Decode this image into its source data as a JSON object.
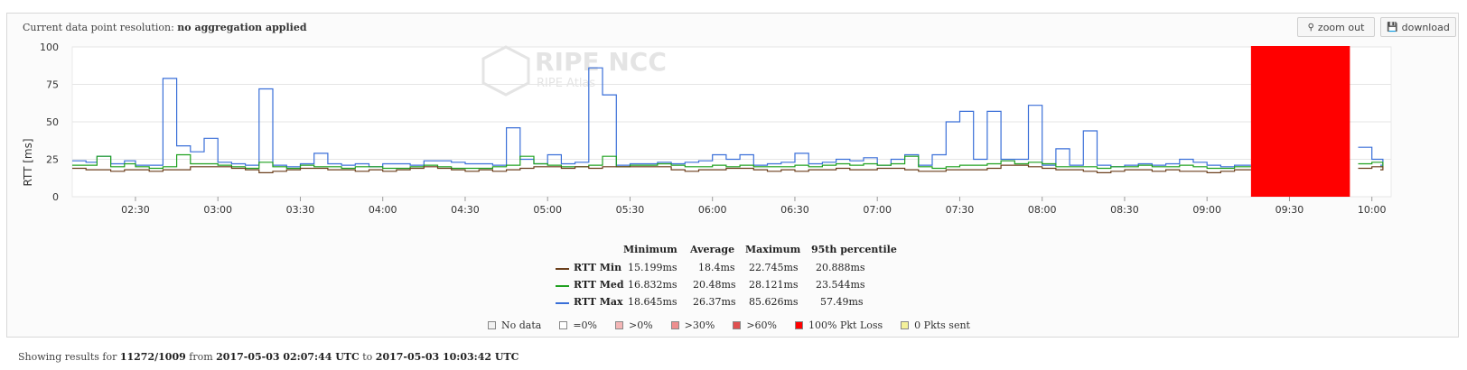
{
  "header": {
    "resolution_label": "Current data point resolution:",
    "resolution_value": "no aggregation applied",
    "zoom_out_label": "zoom out",
    "download_label": "download"
  },
  "watermark": {
    "brand": "RIPE NCC",
    "sub": "RIPE Atlas"
  },
  "colors": {
    "min": "#6b3f1c",
    "med": "#1fa01f",
    "max": "#3a6fd8",
    "loss": "#ff0000",
    "grid": "#e6e6e6"
  },
  "chart_data": {
    "type": "line",
    "ylabel": "RTT [ms]",
    "ylim": [
      0,
      100
    ],
    "yticks": [
      0,
      25,
      50,
      75,
      100
    ],
    "xlim": [
      "02:07",
      "10:07"
    ],
    "xticks": [
      "02:30",
      "03:00",
      "03:30",
      "04:00",
      "04:30",
      "05:00",
      "05:30",
      "06:00",
      "06:30",
      "07:00",
      "07:30",
      "08:00",
      "08:30",
      "09:00",
      "09:30",
      "10:00"
    ],
    "step": true,
    "loss_band": {
      "from": "09:16",
      "to": "09:52",
      "label": "100% Pkt Loss"
    },
    "series": [
      {
        "name": "RTT Min",
        "x": [
          "02:07",
          "02:12",
          "02:16",
          "02:21",
          "02:26",
          "02:30",
          "02:35",
          "02:40",
          "02:45",
          "02:50",
          "02:55",
          "03:00",
          "03:05",
          "03:10",
          "03:15",
          "03:20",
          "03:25",
          "03:30",
          "03:35",
          "03:40",
          "03:45",
          "03:50",
          "03:55",
          "04:00",
          "04:05",
          "04:10",
          "04:15",
          "04:20",
          "04:25",
          "04:30",
          "04:35",
          "04:40",
          "04:45",
          "04:50",
          "04:55",
          "05:00",
          "05:05",
          "05:10",
          "05:15",
          "05:20",
          "05:25",
          "05:30",
          "05:35",
          "05:40",
          "05:45",
          "05:50",
          "05:55",
          "06:00",
          "06:05",
          "06:10",
          "06:15",
          "06:20",
          "06:25",
          "06:30",
          "06:35",
          "06:40",
          "06:45",
          "06:50",
          "06:55",
          "07:00",
          "07:05",
          "07:10",
          "07:15",
          "07:20",
          "07:25",
          "07:30",
          "07:35",
          "07:40",
          "07:45",
          "07:50",
          "07:55",
          "08:00",
          "08:05",
          "08:10",
          "08:15",
          "08:20",
          "08:25",
          "08:30",
          "08:35",
          "08:40",
          "08:45",
          "08:50",
          "08:55",
          "09:00",
          "09:05",
          "09:10",
          "09:55",
          "10:00",
          "10:04"
        ],
        "values": [
          19,
          18,
          18,
          17,
          18,
          18,
          17,
          18,
          18,
          20,
          20,
          20,
          19,
          18,
          16,
          17,
          18,
          19,
          19,
          18,
          18,
          17,
          18,
          17,
          18,
          19,
          20,
          19,
          18,
          17,
          18,
          17,
          18,
          19,
          20,
          20,
          19,
          20,
          19,
          20,
          20,
          20,
          20,
          20,
          18,
          17,
          18,
          18,
          19,
          19,
          18,
          17,
          18,
          17,
          18,
          18,
          19,
          18,
          18,
          19,
          19,
          18,
          17,
          17,
          18,
          18,
          18,
          19,
          21,
          21,
          20,
          19,
          18,
          18,
          17,
          16,
          17,
          18,
          18,
          17,
          18,
          17,
          17,
          16,
          17,
          18,
          19,
          20,
          18
        ]
      },
      {
        "name": "RTT Med",
        "x": [
          "02:07",
          "02:12",
          "02:16",
          "02:21",
          "02:26",
          "02:30",
          "02:35",
          "02:40",
          "02:45",
          "02:50",
          "02:55",
          "03:00",
          "03:05",
          "03:10",
          "03:15",
          "03:20",
          "03:25",
          "03:30",
          "03:35",
          "03:40",
          "03:45",
          "03:50",
          "03:55",
          "04:00",
          "04:05",
          "04:10",
          "04:15",
          "04:20",
          "04:25",
          "04:30",
          "04:35",
          "04:40",
          "04:45",
          "04:50",
          "04:55",
          "05:00",
          "05:05",
          "05:10",
          "05:15",
          "05:20",
          "05:25",
          "05:30",
          "05:35",
          "05:40",
          "05:45",
          "05:50",
          "05:55",
          "06:00",
          "06:05",
          "06:10",
          "06:15",
          "06:20",
          "06:25",
          "06:30",
          "06:35",
          "06:40",
          "06:45",
          "06:50",
          "06:55",
          "07:00",
          "07:05",
          "07:10",
          "07:15",
          "07:20",
          "07:25",
          "07:30",
          "07:35",
          "07:40",
          "07:45",
          "07:50",
          "07:55",
          "08:00",
          "08:05",
          "08:10",
          "08:15",
          "08:20",
          "08:25",
          "08:30",
          "08:35",
          "08:40",
          "08:45",
          "08:50",
          "08:55",
          "09:00",
          "09:05",
          "09:10",
          "09:55",
          "10:00",
          "10:04"
        ],
        "values": [
          21,
          21,
          27,
          20,
          22,
          20,
          19,
          20,
          28,
          22,
          22,
          21,
          20,
          19,
          23,
          20,
          19,
          21,
          20,
          20,
          19,
          20,
          20,
          19,
          19,
          20,
          21,
          20,
          19,
          19,
          19,
          20,
          21,
          27,
          22,
          21,
          20,
          20,
          21,
          27,
          20,
          21,
          21,
          22,
          21,
          20,
          20,
          21,
          20,
          21,
          20,
          20,
          20,
          21,
          20,
          21,
          22,
          21,
          22,
          21,
          22,
          27,
          20,
          19,
          20,
          21,
          21,
          22,
          24,
          22,
          23,
          22,
          20,
          20,
          20,
          19,
          20,
          20,
          21,
          20,
          20,
          21,
          20,
          19,
          19,
          20,
          22,
          23,
          20
        ]
      },
      {
        "name": "RTT Max",
        "x": [
          "02:07",
          "02:12",
          "02:16",
          "02:21",
          "02:26",
          "02:30",
          "02:35",
          "02:40",
          "02:45",
          "02:50",
          "02:55",
          "03:00",
          "03:05",
          "03:10",
          "03:15",
          "03:20",
          "03:25",
          "03:30",
          "03:35",
          "03:40",
          "03:45",
          "03:50",
          "03:55",
          "04:00",
          "04:05",
          "04:10",
          "04:15",
          "04:20",
          "04:25",
          "04:30",
          "04:35",
          "04:40",
          "04:45",
          "04:50",
          "04:55",
          "05:00",
          "05:05",
          "05:10",
          "05:15",
          "05:20",
          "05:25",
          "05:30",
          "05:35",
          "05:40",
          "05:45",
          "05:50",
          "05:55",
          "06:00",
          "06:05",
          "06:10",
          "06:15",
          "06:20",
          "06:25",
          "06:30",
          "06:35",
          "06:40",
          "06:45",
          "06:50",
          "06:55",
          "07:00",
          "07:05",
          "07:10",
          "07:15",
          "07:20",
          "07:25",
          "07:30",
          "07:35",
          "07:40",
          "07:45",
          "07:50",
          "07:55",
          "08:00",
          "08:05",
          "08:10",
          "08:15",
          "08:20",
          "08:25",
          "08:30",
          "08:35",
          "08:40",
          "08:45",
          "08:50",
          "08:55",
          "09:00",
          "09:05",
          "09:10",
          "09:55",
          "10:00",
          "10:04"
        ],
        "values": [
          24,
          23,
          27,
          22,
          24,
          21,
          21,
          79,
          34,
          30,
          39,
          23,
          22,
          21,
          72,
          21,
          20,
          22,
          29,
          22,
          21,
          22,
          20,
          22,
          22,
          21,
          24,
          24,
          23,
          22,
          22,
          21,
          46,
          25,
          22,
          28,
          22,
          23,
          86,
          68,
          21,
          22,
          22,
          23,
          22,
          23,
          24,
          28,
          25,
          28,
          21,
          22,
          23,
          29,
          22,
          23,
          25,
          24,
          26,
          21,
          25,
          28,
          21,
          28,
          50,
          57,
          25,
          57,
          25,
          25,
          61,
          21,
          32,
          21,
          44,
          21,
          20,
          21,
          22,
          21,
          22,
          25,
          23,
          21,
          20,
          21,
          33,
          25,
          21
        ]
      }
    ]
  },
  "stats": {
    "headers": [
      "Minimum",
      "Average",
      "Maximum",
      "95th percentile"
    ],
    "rows": [
      {
        "name": "RTT Min",
        "min": "15.199ms",
        "avg": "18.4ms",
        "max": "22.745ms",
        "p95": "20.888ms"
      },
      {
        "name": "RTT Med",
        "min": "16.832ms",
        "avg": "20.48ms",
        "max": "28.121ms",
        "p95": "23.544ms"
      },
      {
        "name": "RTT Max",
        "min": "18.645ms",
        "avg": "26.37ms",
        "max": "85.626ms",
        "p95": "57.49ms"
      }
    ]
  },
  "legend": [
    {
      "label": "No data",
      "color": "#f2f2f2"
    },
    {
      "label": "=0%",
      "color": "#ffffff"
    },
    {
      "label": ">0%",
      "color": "#f4b6b6"
    },
    {
      "label": ">30%",
      "color": "#ee8f8f"
    },
    {
      "label": ">60%",
      "color": "#e05050"
    },
    {
      "label": "100% Pkt Loss",
      "color": "#ff0000"
    },
    {
      "label": "0 Pkts sent",
      "color": "#f4f19a"
    }
  ],
  "footer": {
    "prefix": "Showing results for",
    "target": "11272/1009",
    "from_word": "from",
    "start": "2017-05-03 02:07:44 UTC",
    "to_word": "to",
    "end": "2017-05-03 10:03:42 UTC"
  }
}
